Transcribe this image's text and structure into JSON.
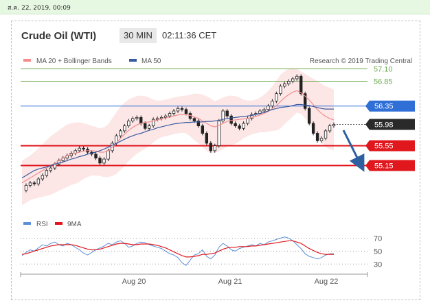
{
  "header": {
    "timestamp": "ส.ค. 22, 2019, 00:09",
    "title": "Crude Oil (WTI)",
    "interval": "30 MIN",
    "clock": "02:11:36 CET"
  },
  "chart_data": [
    {
      "type": "line",
      "name": "price",
      "legend": [
        {
          "label": "MA 20 + Bollinger Bands",
          "color": "#f28e8e"
        },
        {
          "label": "MA 50",
          "color": "#3a5ba0"
        }
      ],
      "credit": "Research © 2019 Trading Central",
      "x_ticks": [
        "Aug 20",
        "Aug 21",
        "Aug 22"
      ],
      "ylim": [
        54.3,
        57.3
      ],
      "levels": [
        {
          "label": "57.10",
          "value": 57.1,
          "color": "#6aa84f",
          "style": "resistance-text"
        },
        {
          "label": "56.85",
          "value": 56.85,
          "color": "#6aa84f",
          "style": "resistance-text"
        },
        {
          "label": "56.35",
          "value": 56.35,
          "color": "#2f6fd6",
          "style": "pivot-tag"
        },
        {
          "label": "55.98",
          "value": 55.98,
          "color": "#2a2a2a",
          "style": "last-price-tag"
        },
        {
          "label": "55.55",
          "value": 55.55,
          "color": "#e0171d",
          "style": "support-tag"
        },
        {
          "label": "55.15",
          "value": 55.15,
          "color": "#e0171d",
          "style": "support-tag"
        }
      ],
      "close": [
        54.65,
        54.75,
        54.8,
        54.78,
        54.88,
        54.95,
        55.05,
        55.1,
        55.18,
        55.25,
        55.3,
        55.35,
        55.4,
        55.45,
        55.5,
        55.48,
        55.42,
        55.38,
        55.3,
        55.2,
        55.28,
        55.45,
        55.6,
        55.75,
        55.85,
        55.95,
        56.05,
        56.1,
        56.12,
        56.0,
        55.9,
        55.95,
        56.08,
        56.1,
        56.12,
        56.15,
        56.2,
        56.25,
        56.3,
        56.28,
        56.2,
        56.1,
        56.05,
        55.95,
        55.8,
        55.6,
        55.45,
        55.55,
        56.05,
        56.25,
        56.15,
        56.0,
        55.95,
        55.9,
        56.0,
        56.1,
        56.18,
        56.2,
        56.25,
        56.28,
        56.35,
        56.45,
        56.6,
        56.75,
        56.8,
        56.85,
        56.9,
        56.95,
        56.6,
        56.3,
        56.0,
        55.8,
        55.65,
        55.7,
        55.85,
        55.95,
        55.98
      ],
      "ma50": [
        54.9,
        54.95,
        55.0,
        55.05,
        55.08,
        55.1,
        55.12,
        55.15,
        55.18,
        55.2,
        55.22,
        55.25,
        55.28,
        55.3,
        55.33,
        55.35,
        55.38,
        55.4,
        55.42,
        55.45,
        55.48,
        55.52,
        55.56,
        55.6,
        55.64,
        55.68,
        55.72,
        55.75,
        55.78,
        55.8,
        55.83,
        55.86,
        55.88,
        55.91,
        55.93,
        55.95,
        55.97,
        55.99,
        56.0,
        56.01,
        56.02,
        56.02,
        56.03,
        56.03,
        56.03,
        56.04,
        56.04,
        56.05,
        56.06,
        56.08,
        56.1,
        56.11,
        56.12,
        56.13,
        56.14,
        56.15,
        56.16,
        56.18,
        56.2,
        56.22,
        56.25,
        56.28,
        56.3,
        56.32,
        56.33,
        56.34,
        56.36,
        56.38,
        56.38,
        56.37,
        56.36,
        56.34,
        56.32,
        56.3,
        56.29,
        56.29,
        56.29
      ],
      "ma20": [
        54.8,
        54.85,
        54.9,
        54.95,
        55.0,
        55.05,
        55.1,
        55.15,
        55.2,
        55.25,
        55.3,
        55.35,
        55.38,
        55.4,
        55.42,
        55.44,
        55.45,
        55.45,
        55.44,
        55.42,
        55.42,
        55.45,
        55.52,
        55.6,
        55.7,
        55.78,
        55.86,
        55.92,
        55.97,
        56.0,
        56.02,
        56.03,
        56.05,
        56.07,
        56.09,
        56.11,
        56.13,
        56.15,
        56.17,
        56.18,
        56.18,
        56.16,
        56.13,
        56.1,
        56.05,
        56.0,
        55.95,
        55.93,
        55.96,
        56.0,
        56.04,
        56.06,
        56.07,
        56.08,
        56.09,
        56.1,
        56.12,
        56.14,
        56.17,
        56.2,
        56.24,
        56.3,
        56.36,
        56.44,
        56.52,
        56.58,
        56.63,
        56.66,
        56.62,
        56.55,
        56.47,
        56.38,
        56.28,
        56.2,
        56.14,
        56.1,
        56.07
      ],
      "band_upper": [
        55.25,
        55.3,
        55.35,
        55.42,
        55.5,
        55.58,
        55.66,
        55.74,
        55.8,
        55.86,
        55.92,
        55.98,
        56.0,
        56.02,
        56.02,
        56.0,
        55.98,
        55.95,
        55.93,
        55.9,
        55.92,
        55.98,
        56.1,
        56.22,
        56.34,
        56.42,
        56.48,
        56.52,
        56.55,
        56.56,
        56.55,
        56.52,
        56.48,
        56.46,
        56.46,
        56.48,
        56.5,
        56.52,
        56.54,
        56.55,
        56.56,
        56.58,
        56.6,
        56.6,
        56.58,
        56.55,
        56.5,
        56.45,
        56.48,
        56.52,
        56.55,
        56.56,
        56.55,
        56.52,
        56.48,
        56.46,
        56.46,
        56.48,
        56.52,
        56.58,
        56.65,
        56.75,
        56.86,
        56.98,
        57.05,
        57.1,
        57.12,
        57.1,
        57.05,
        57.0,
        56.95,
        56.9,
        56.85,
        56.8,
        56.75,
        56.72,
        56.68
      ],
      "band_lower": [
        54.35,
        54.4,
        54.45,
        54.48,
        54.5,
        54.52,
        54.54,
        54.56,
        54.6,
        54.64,
        54.68,
        54.72,
        54.76,
        54.78,
        54.82,
        54.88,
        54.92,
        54.95,
        54.95,
        54.94,
        54.92,
        54.92,
        54.94,
        54.98,
        55.06,
        55.14,
        55.24,
        55.32,
        55.39,
        55.44,
        55.49,
        55.54,
        55.62,
        55.68,
        55.72,
        55.74,
        55.76,
        55.78,
        55.8,
        55.81,
        55.8,
        55.74,
        55.66,
        55.6,
        55.52,
        55.45,
        55.4,
        55.41,
        55.44,
        55.48,
        55.53,
        55.56,
        55.59,
        55.64,
        55.7,
        55.74,
        55.78,
        55.8,
        55.82,
        55.82,
        55.83,
        55.85,
        55.86,
        55.9,
        55.99,
        56.06,
        56.14,
        56.22,
        56.19,
        56.1,
        55.99,
        55.86,
        55.71,
        55.6,
        55.53,
        55.48,
        55.46
      ]
    },
    {
      "type": "line",
      "name": "oscillator",
      "legend": [
        {
          "label": "RSI",
          "color": "#5b8fd6"
        },
        {
          "label": "9MA",
          "color": "#e0171d"
        }
      ],
      "y_ticks": [
        "70",
        "50",
        "30"
      ],
      "ylim": [
        25,
        78
      ],
      "rsi": [
        43,
        48,
        52,
        50,
        55,
        60,
        58,
        62,
        64,
        60,
        58,
        62,
        60,
        56,
        52,
        47,
        44,
        48,
        52,
        55,
        58,
        62,
        60,
        64,
        66,
        62,
        56,
        58,
        62,
        64,
        63,
        60,
        58,
        56,
        54,
        50,
        46,
        44,
        40,
        32,
        28,
        36,
        44,
        46,
        52,
        42,
        38,
        44,
        56,
        62,
        58,
        52,
        50,
        54,
        56,
        58,
        60,
        58,
        62,
        60,
        64,
        66,
        68,
        70,
        72,
        70,
        66,
        60,
        54,
        46,
        42,
        40,
        38,
        40,
        44,
        46,
        46
      ],
      "ma9": [
        45,
        46,
        48,
        50,
        52,
        54,
        56,
        58,
        59,
        60,
        60,
        60,
        60,
        59,
        57,
        55,
        53,
        52,
        52,
        53,
        55,
        57,
        59,
        61,
        62,
        62,
        61,
        60,
        60,
        61,
        61,
        61,
        60,
        59,
        57,
        55,
        52,
        49,
        46,
        43,
        41,
        41,
        42,
        43,
        45,
        45,
        46,
        47,
        50,
        53,
        55,
        56,
        56,
        57,
        57,
        57,
        58,
        58,
        59,
        60,
        61,
        62,
        63,
        64,
        65,
        66,
        66,
        64,
        62,
        58,
        54,
        51,
        48,
        46,
        45,
        45,
        45
      ]
    }
  ]
}
